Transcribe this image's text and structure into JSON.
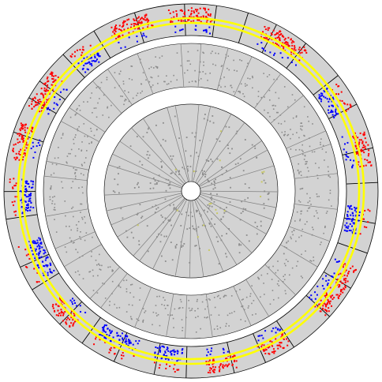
{
  "chart_data": {
    "type": "scatter",
    "layout": "circular",
    "title": "",
    "legend": "none",
    "grid": true,
    "colors": {
      "background": "#ffffff",
      "track_fill": "#d3d3d3",
      "boundary": "#000000",
      "sector_line": "#7f7f7f",
      "high": "#ff0000",
      "low": "#0000ff",
      "band": "#ffff00",
      "inner_points": "#8c8c8c",
      "inner_marks": "#c8c864"
    },
    "outer_track": {
      "segment_count": 31,
      "threshold_colors": [
        "#ff0000",
        "#0000ff"
      ],
      "reference_line_color": "#ffff00",
      "clusters": [
        {
          "angle": 0,
          "span": 14,
          "side": "high"
        },
        {
          "angle": 32,
          "span": 16,
          "side": "high"
        },
        {
          "angle": 58,
          "span": 10,
          "side": "low"
        },
        {
          "angle": 76,
          "span": 12,
          "side": "high"
        },
        {
          "angle": 100,
          "span": 10,
          "side": "low"
        },
        {
          "angle": 124,
          "span": 18,
          "side": "high"
        },
        {
          "angle": 152,
          "span": 10,
          "side": "high"
        },
        {
          "angle": 170,
          "span": 10,
          "side": "high"
        },
        {
          "angle": 188,
          "span": 10,
          "side": "low"
        },
        {
          "angle": 206,
          "span": 14,
          "side": "low"
        },
        {
          "angle": 226,
          "span": 10,
          "side": "high"
        },
        {
          "angle": 246,
          "span": 14,
          "side": "low"
        },
        {
          "angle": 268,
          "span": 12,
          "side": "low"
        },
        {
          "angle": 286,
          "span": 12,
          "side": "high"
        },
        {
          "angle": 304,
          "span": 14,
          "side": "high"
        },
        {
          "angle": 322,
          "span": 8,
          "side": "low"
        },
        {
          "angle": 340,
          "span": 14,
          "side": "high"
        }
      ]
    },
    "middle_track": {
      "segment_count": 31,
      "point_color": "#8c8c8c"
    },
    "inner_track": {
      "segment_count": 31,
      "point_color": "#8c8c8c"
    }
  }
}
